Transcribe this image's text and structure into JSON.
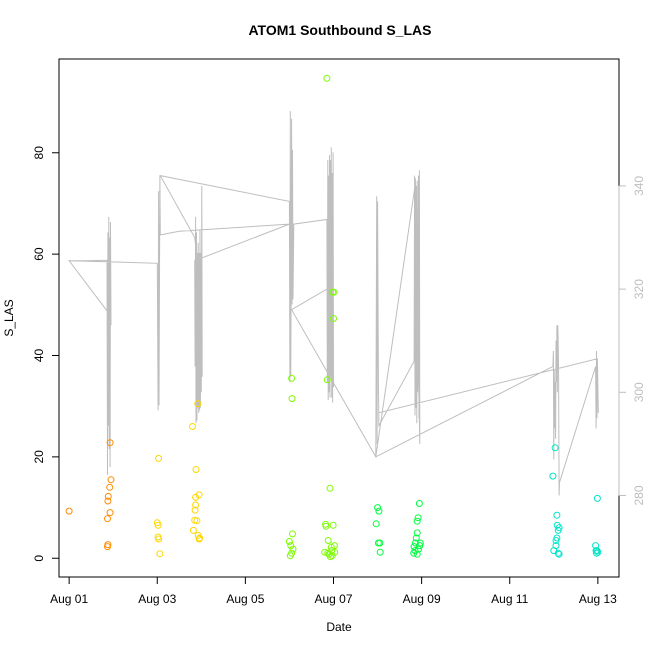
{
  "chart_data": {
    "type": "scatter",
    "title": "ATOM1 Southbound S_LAS",
    "xlabel": "Date",
    "ylabel": "S_LAS",
    "x_ticks": [
      "Aug 01",
      "Aug 03",
      "Aug 05",
      "Aug 07",
      "Aug 09",
      "Aug 11",
      "Aug 13"
    ],
    "x_tick_days": [
      1,
      3,
      5,
      7,
      9,
      11,
      13
    ],
    "xlim_days": [
      0.77,
      13.48
    ],
    "ylim": [
      -3.7,
      98.5
    ],
    "y_ticks": [
      0,
      20,
      40,
      60,
      80
    ],
    "right_axis": {
      "ticks": [
        280,
        300,
        320,
        340
      ],
      "ylim": [
        264.2,
        364.6
      ],
      "color": "#bebebe"
    },
    "grid": false,
    "legend": "none",
    "series": [
      {
        "color": "#ff8c00",
        "points": [
          [
            1.0,
            9.3
          ],
          [
            1.87,
            2.3
          ],
          [
            1.88,
            2.7
          ],
          [
            1.87,
            7.8
          ],
          [
            1.88,
            11.3
          ],
          [
            1.89,
            12.2
          ],
          [
            1.92,
            14.0
          ],
          [
            1.95,
            15.5
          ],
          [
            1.93,
            22.8
          ],
          [
            1.93,
            9.0
          ]
        ]
      },
      {
        "color": "#ffd700",
        "points": [
          [
            3.0,
            7.0
          ],
          [
            3.02,
            6.5
          ],
          [
            3.02,
            4.2
          ],
          [
            3.03,
            3.8
          ],
          [
            3.03,
            19.7
          ],
          [
            3.06,
            0.9
          ],
          [
            3.8,
            26.0
          ],
          [
            3.82,
            5.5
          ],
          [
            3.85,
            7.5
          ],
          [
            3.86,
            9.5
          ],
          [
            3.87,
            10.5
          ],
          [
            3.87,
            12.0
          ],
          [
            3.88,
            17.5
          ],
          [
            3.9,
            7.4
          ],
          [
            3.93,
            4.5
          ],
          [
            3.95,
            3.8
          ],
          [
            3.95,
            12.5
          ],
          [
            3.96,
            4.0
          ],
          [
            3.92,
            30.5
          ]
        ]
      },
      {
        "color": "#7cfc00",
        "points": [
          [
            6.0,
            3.3
          ],
          [
            6.02,
            0.5
          ],
          [
            6.03,
            2.5
          ],
          [
            6.05,
            35.5
          ],
          [
            6.06,
            31.5
          ],
          [
            6.07,
            4.8
          ],
          [
            6.08,
            1.8
          ],
          [
            6.05,
            1.0
          ],
          [
            6.8,
            1.2
          ],
          [
            6.82,
            6.7
          ],
          [
            6.83,
            6.3
          ],
          [
            6.85,
            94.7
          ],
          [
            6.86,
            35.2
          ],
          [
            6.87,
            1.0
          ],
          [
            6.88,
            3.5
          ],
          [
            6.9,
            0.8
          ],
          [
            6.92,
            13.8
          ],
          [
            6.95,
            2.2
          ],
          [
            6.96,
            1.5
          ],
          [
            6.97,
            0.5
          ],
          [
            6.98,
            52.5
          ],
          [
            6.99,
            6.5
          ],
          [
            7.0,
            47.3
          ],
          [
            7.01,
            52.5
          ],
          [
            7.02,
            2.5
          ],
          [
            7.03,
            1.2
          ],
          [
            6.93,
            0.3
          ]
        ]
      },
      {
        "color": "#00ff40",
        "points": [
          [
            7.97,
            6.8
          ],
          [
            8.0,
            10.0
          ],
          [
            8.02,
            3.0
          ],
          [
            8.03,
            9.3
          ],
          [
            8.05,
            3.0
          ],
          [
            8.06,
            1.2
          ],
          [
            8.82,
            1.0
          ],
          [
            8.83,
            2.3
          ],
          [
            8.85,
            1.5
          ],
          [
            8.86,
            3.0
          ],
          [
            8.88,
            4.0
          ],
          [
            8.9,
            5.0
          ],
          [
            8.9,
            7.3
          ],
          [
            8.92,
            8.0
          ],
          [
            8.93,
            1.8
          ],
          [
            8.95,
            10.8
          ],
          [
            8.96,
            2.5
          ],
          [
            8.97,
            3.0
          ],
          [
            8.9,
            0.8
          ]
        ]
      },
      {
        "color": "#00e5c8",
        "points": [
          [
            11.98,
            16.2
          ],
          [
            12.0,
            1.5
          ],
          [
            12.03,
            21.8
          ],
          [
            12.05,
            2.5
          ],
          [
            12.07,
            8.5
          ],
          [
            12.08,
            6.5
          ],
          [
            12.1,
            5.5
          ],
          [
            12.12,
            6.0
          ],
          [
            12.05,
            3.5
          ],
          [
            12.07,
            4.0
          ],
          [
            12.1,
            1.0
          ],
          [
            12.12,
            0.8
          ],
          [
            12.95,
            2.5
          ],
          [
            12.96,
            1.5
          ],
          [
            12.97,
            1.0
          ],
          [
            12.98,
            1.5
          ],
          [
            12.99,
            11.8
          ],
          [
            13.0,
            1.2
          ]
        ]
      }
    ],
    "right_line": {
      "color": "#bebebe",
      "points": [
        [
          1.0,
          325.5
        ],
        [
          1.4,
          325.5
        ],
        [
          1.86,
          325.6
        ],
        [
          1.87,
          284.0
        ],
        [
          1.88,
          331.0
        ],
        [
          1.89,
          293.5
        ],
        [
          1.9,
          334.0
        ],
        [
          1.91,
          289.0
        ],
        [
          1.92,
          330.0
        ],
        [
          1.93,
          285.5
        ],
        [
          1.94,
          333.0
        ],
        [
          1.95,
          313.0
        ],
        [
          1.93,
          315.0
        ],
        [
          1.0,
          325.5
        ],
        [
          3.0,
          325.0
        ],
        [
          3.02,
          296.5
        ],
        [
          3.03,
          339.0
        ],
        [
          3.04,
          297.5
        ],
        [
          3.06,
          342.0
        ],
        [
          3.07,
          330.5
        ],
        [
          3.5,
          331.2
        ],
        [
          6.0,
          332.6
        ],
        [
          3.85,
          325.5
        ],
        [
          3.86,
          305.0
        ],
        [
          3.87,
          334.0
        ],
        [
          3.88,
          294.0
        ],
        [
          3.89,
          331.0
        ],
        [
          3.9,
          294.5
        ],
        [
          3.91,
          327.0
        ],
        [
          3.92,
          297.0
        ],
        [
          3.93,
          329.0
        ],
        [
          3.94,
          296.0
        ],
        [
          3.95,
          327.0
        ],
        [
          3.96,
          296.5
        ],
        [
          3.97,
          331.5
        ],
        [
          3.98,
          297.0
        ],
        [
          3.99,
          327.0
        ],
        [
          4.0,
          300.0
        ],
        [
          4.01,
          340.0
        ],
        [
          4.02,
          303.0
        ],
        [
          4.0,
          319.0
        ],
        [
          3.85,
          330.0
        ],
        [
          3.07,
          342.0
        ],
        [
          6.0,
          337.0
        ],
        [
          6.01,
          302.0
        ],
        [
          6.02,
          354.5
        ],
        [
          6.03,
          303.0
        ],
        [
          6.05,
          353.0
        ],
        [
          6.06,
          317.0
        ],
        [
          6.07,
          347.0
        ],
        [
          6.08,
          318.0
        ],
        [
          6.1,
          332.6
        ],
        [
          6.85,
          333.5
        ],
        [
          6.86,
          302.0
        ],
        [
          6.87,
          345.0
        ],
        [
          6.88,
          298.5
        ],
        [
          6.89,
          342.0
        ],
        [
          6.9,
          300.0
        ],
        [
          6.91,
          346.0
        ],
        [
          6.92,
          299.0
        ],
        [
          6.93,
          345.0
        ],
        [
          6.94,
          303.0
        ],
        [
          6.95,
          347.5
        ],
        [
          6.96,
          299.0
        ],
        [
          6.97,
          342.5
        ],
        [
          6.98,
          298.0
        ],
        [
          6.99,
          346.5
        ],
        [
          7.0,
          301.0
        ],
        [
          6.85,
          320.0
        ],
        [
          6.05,
          316.0
        ],
        [
          7.96,
          287.5
        ],
        [
          7.98,
          338.0
        ],
        [
          7.99,
          290.0
        ],
        [
          8.0,
          337.0
        ],
        [
          8.02,
          302.5
        ],
        [
          8.03,
          293.5
        ],
        [
          8.83,
          306.0
        ],
        [
          8.84,
          342.0
        ],
        [
          8.85,
          295.5
        ],
        [
          8.86,
          341.5
        ],
        [
          8.87,
          297.0
        ],
        [
          8.88,
          340.0
        ],
        [
          8.89,
          294.0
        ],
        [
          8.9,
          341.0
        ],
        [
          8.91,
          300.0
        ],
        [
          8.93,
          342.0
        ],
        [
          8.94,
          295.0
        ],
        [
          8.95,
          343.0
        ],
        [
          8.96,
          290.0
        ],
        [
          8.85,
          340.0
        ],
        [
          7.96,
          287.5
        ],
        [
          11.98,
          305.0
        ],
        [
          11.99,
          308.0
        ],
        [
          12.0,
          287.0
        ],
        [
          12.01,
          304.5
        ],
        [
          12.02,
          293.0
        ],
        [
          12.03,
          302.0
        ],
        [
          12.04,
          291.0
        ],
        [
          12.05,
          310.0
        ],
        [
          12.06,
          302.0
        ],
        [
          12.07,
          313.0
        ],
        [
          12.08,
          300.0
        ],
        [
          12.09,
          313.0
        ],
        [
          12.1,
          310.0
        ],
        [
          12.11,
          303.5
        ],
        [
          12.12,
          280.0
        ],
        [
          12.13,
          282.5
        ],
        [
          12.95,
          305.0
        ],
        [
          12.96,
          293.0
        ],
        [
          12.97,
          308.0
        ],
        [
          12.98,
          295.0
        ],
        [
          12.99,
          306.0
        ],
        [
          13.0,
          300.0
        ],
        [
          13.01,
          296.0
        ],
        [
          12.99,
          306.5
        ],
        [
          8.02,
          296.0
        ]
      ]
    }
  }
}
